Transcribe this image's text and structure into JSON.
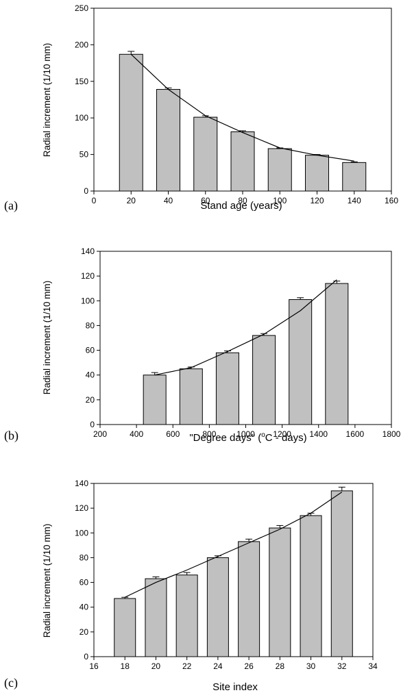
{
  "colors": {
    "bar_fill": "#c0c0c0",
    "stroke": "#000000"
  },
  "chart_data": [
    {
      "type": "bar",
      "panel_label": "(a)",
      "xlabel": "Stand age (years)",
      "ylabel": "Radial increment (1/10 mm)",
      "xlim": [
        0,
        160
      ],
      "ylim": [
        0,
        250
      ],
      "x_ticks": [
        "0",
        "20",
        "40",
        "60",
        "80",
        "100",
        "120",
        "140",
        "160"
      ],
      "y_ticks": [
        "0",
        "50",
        "100",
        "150",
        "200",
        "250"
      ],
      "x": [
        20,
        40,
        60,
        80,
        100,
        120,
        140
      ],
      "values": [
        187,
        139,
        101,
        81,
        58,
        49,
        39
      ],
      "errors": [
        4,
        2,
        2,
        1.5,
        1,
        1,
        1
      ],
      "fit_line": [
        [
          20,
          187
        ],
        [
          40,
          139
        ],
        [
          60,
          103
        ],
        [
          80,
          80
        ],
        [
          100,
          59
        ],
        [
          120,
          49
        ],
        [
          140,
          41
        ]
      ],
      "grid": false
    },
    {
      "type": "bar",
      "panel_label": "(b)",
      "xlabel_pre": "\"Degree days\" (",
      "xlabel_sup": "o",
      "xlabel_post": "C - days)",
      "ylabel": "Radial increment (1/10 mm)",
      "xlim": [
        200,
        1800
      ],
      "ylim": [
        0,
        140
      ],
      "x_ticks": [
        "200",
        "400",
        "600",
        "800",
        "1000",
        "1200",
        "1400",
        "1600",
        "1800"
      ],
      "y_ticks": [
        "0",
        "20",
        "40",
        "60",
        "80",
        "100",
        "120",
        "140"
      ],
      "x": [
        500,
        700,
        900,
        1100,
        1300,
        1500
      ],
      "values": [
        40,
        45,
        58,
        72,
        101,
        114
      ],
      "errors": [
        2,
        1.5,
        1.5,
        1.5,
        1.5,
        2
      ],
      "fit_line": [
        [
          500,
          40
        ],
        [
          700,
          46
        ],
        [
          900,
          59
        ],
        [
          1100,
          73
        ],
        [
          1300,
          92
        ],
        [
          1500,
          117
        ]
      ],
      "grid": false
    },
    {
      "type": "bar",
      "panel_label": "(c)",
      "xlabel": "Site index",
      "ylabel": "Radial increment (1/10 mm)",
      "xlim": [
        16,
        34
      ],
      "ylim": [
        0,
        140
      ],
      "x_ticks": [
        "16",
        "18",
        "20",
        "22",
        "24",
        "26",
        "28",
        "30",
        "32",
        "34"
      ],
      "y_ticks": [
        "0",
        "20",
        "40",
        "60",
        "80",
        "100",
        "120",
        "140"
      ],
      "x": [
        18,
        20,
        22,
        24,
        26,
        28,
        30,
        32
      ],
      "values": [
        47,
        63,
        66,
        80,
        93,
        104,
        114,
        134
      ],
      "errors": [
        1,
        1.5,
        2,
        1.5,
        2,
        2,
        2,
        3
      ],
      "fit_line": [
        [
          18,
          48
        ],
        [
          20,
          60
        ],
        [
          22,
          70
        ],
        [
          24,
          81
        ],
        [
          26,
          92
        ],
        [
          28,
          103
        ],
        [
          30,
          116
        ],
        [
          32,
          133
        ]
      ],
      "grid": false
    }
  ]
}
